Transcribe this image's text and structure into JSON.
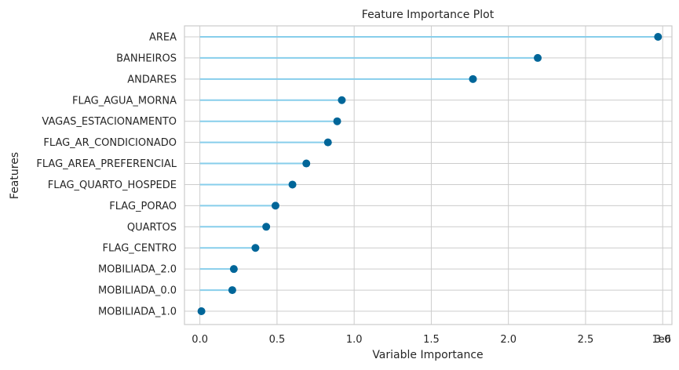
{
  "chart_data": {
    "type": "lollipop",
    "title": "Feature Importance Plot",
    "xlabel": "Variable Importance",
    "ylabel": "Features",
    "x_multiplier_label": "1e6",
    "xlim": [
      -0.1,
      3.06
    ],
    "xticks": [
      0.0,
      0.5,
      1.0,
      1.5,
      2.0,
      2.5,
      3.0
    ],
    "xtick_labels": [
      "0.0",
      "0.5",
      "1.0",
      "1.5",
      "2.0",
      "2.5",
      "3.0"
    ],
    "grid": true,
    "colors": {
      "stem": "#87ceeb",
      "marker": "#006699",
      "grid": "#cccccc",
      "spine": "#cccccc",
      "background": "#ffffff"
    },
    "categories": [
      "AREA",
      "BANHEIROS",
      "ANDARES",
      "FLAG_AGUA_MORNA",
      "VAGAS_ESTACIONAMENTO",
      "FLAG_AR_CONDICIONADO",
      "FLAG_AREA_PREFERENCIAL",
      "FLAG_QUARTO_HOSPEDE",
      "FLAG_PORAO",
      "QUARTOS",
      "FLAG_CENTRO",
      "MOBILIADA_2.0",
      "MOBILIADA_0.0",
      "MOBILIADA_1.0"
    ],
    "values": [
      2.97,
      2.19,
      1.77,
      0.92,
      0.89,
      0.83,
      0.69,
      0.6,
      0.49,
      0.43,
      0.36,
      0.22,
      0.21,
      0.01
    ]
  }
}
